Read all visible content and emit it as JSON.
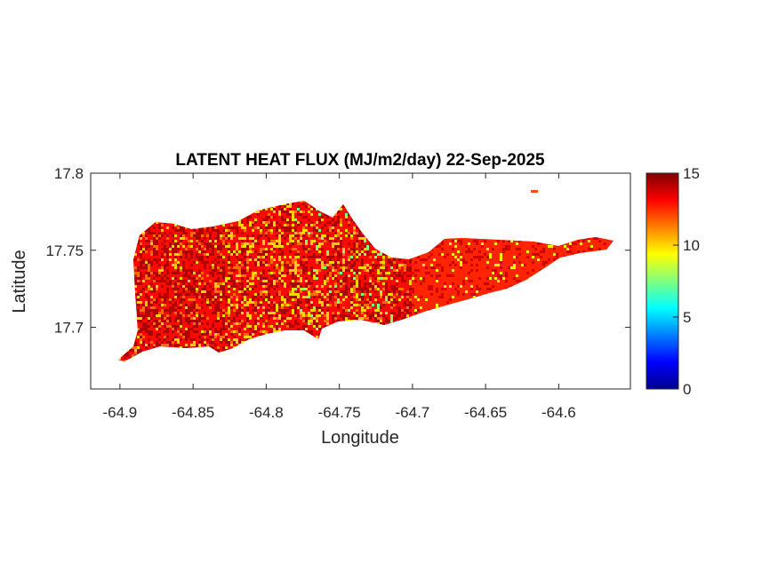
{
  "chart_data": {
    "type": "heatmap",
    "title": "LATENT HEAT FLUX (MJ/m2/day) 22-Sep-2025",
    "xlabel": "Longitude",
    "ylabel": "Latitude",
    "xlim": [
      -64.92,
      -64.551
    ],
    "ylim": [
      17.66,
      17.8
    ],
    "xticks": [
      -64.9,
      -64.85,
      -64.8,
      -64.75,
      -64.7,
      -64.65,
      -64.6
    ],
    "xtick_labels": [
      "-64.9",
      "-64.85",
      "-64.8",
      "-64.75",
      "-64.7",
      "-64.65",
      "-64.6"
    ],
    "yticks": [
      17.7,
      17.75,
      17.8
    ],
    "ytick_labels": [
      "17.7",
      "17.75",
      "17.8"
    ],
    "colorbar": {
      "colormap": "jet",
      "clim": [
        0,
        15
      ],
      "ticks": [
        0,
        5,
        10,
        15
      ],
      "tick_labels": [
        "0",
        "5",
        "10",
        "15"
      ],
      "location": "right"
    },
    "grid": false,
    "typical_value_range": [
      8,
      15
    ]
  }
}
